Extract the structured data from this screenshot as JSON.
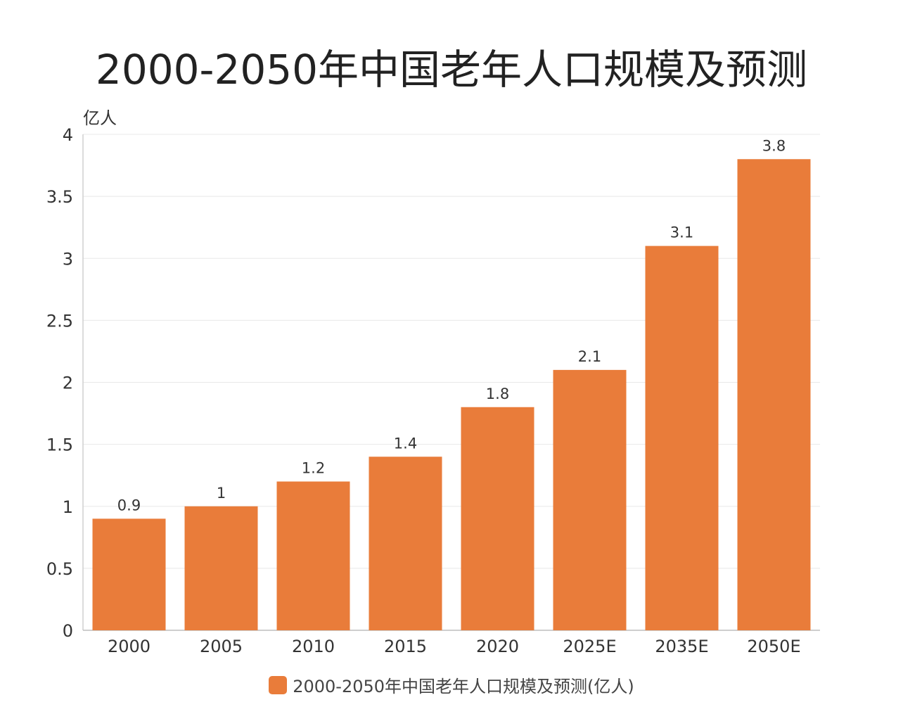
{
  "title": "2000-2050年中国老年人口规模及预测",
  "chart_data": {
    "type": "bar",
    "title": "2000-2050年中国老年人口规模及预测",
    "ylabel": "亿人",
    "xlabel": "",
    "categories": [
      "2000",
      "2005",
      "2010",
      "2015",
      "2020",
      "2025E",
      "2035E",
      "2050E"
    ],
    "series": [
      {
        "name": "2000-2050年中国老年人口规模及预测(亿人)",
        "values": [
          0.9,
          1,
          1.2,
          1.4,
          1.8,
          2.1,
          3.1,
          3.8
        ],
        "labels": [
          "0.9",
          "1",
          "1.2",
          "1.4",
          "1.8",
          "2.1",
          "3.1",
          "3.8"
        ]
      }
    ],
    "ylim": [
      0,
      4
    ],
    "yticks": [
      "0",
      "0.5",
      "1",
      "1.5",
      "2",
      "2.5",
      "3",
      "3.5",
      "4"
    ],
    "grid": true,
    "legend_position": "bottom",
    "bar_color": "#E97C3A"
  },
  "legend": {
    "label": "2000-2050年中国老年人口规模及预测(亿人)",
    "color": "#E97C3A"
  }
}
